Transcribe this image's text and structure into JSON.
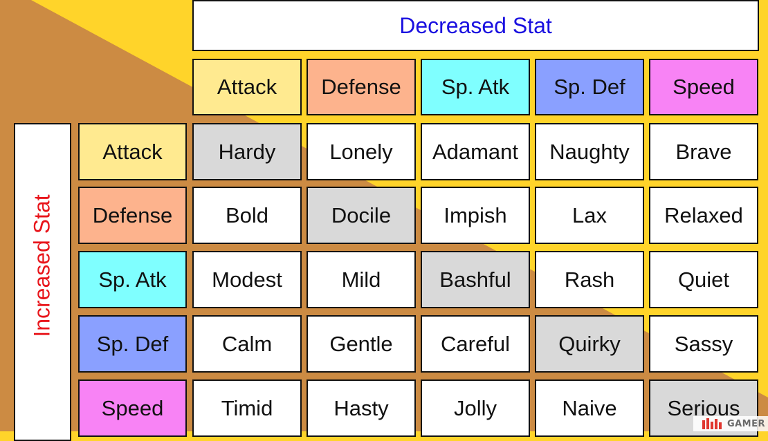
{
  "header": {
    "decreased_label": "Decreased Stat",
    "increased_label": "Increased Stat"
  },
  "stats": [
    {
      "label": "Attack",
      "color": "#ffea90"
    },
    {
      "label": "Defense",
      "color": "#fdb38d"
    },
    {
      "label": "Sp. Atk",
      "color": "#7fffff"
    },
    {
      "label": "Sp. Def",
      "color": "#8aa0ff"
    },
    {
      "label": "Speed",
      "color": "#f883f5"
    }
  ],
  "natures": [
    [
      "Hardy",
      "Lonely",
      "Adamant",
      "Naughty",
      "Brave"
    ],
    [
      "Bold",
      "Docile",
      "Impish",
      "Lax",
      "Relaxed"
    ],
    [
      "Modest",
      "Mild",
      "Bashful",
      "Rash",
      "Quiet"
    ],
    [
      "Calm",
      "Gentle",
      "Careful",
      "Quirky",
      "Sassy"
    ],
    [
      "Timid",
      "Hasty",
      "Jolly",
      "Naive",
      "Serious"
    ]
  ],
  "colors": {
    "background_yellow": "#ffd42a",
    "background_brown": "#cc8b43",
    "neutral_cell": "#d9d9d9",
    "cell": "#ffffff",
    "decreased_text": "#1a10e0",
    "increased_text": "#e8151b"
  },
  "watermark": {
    "text": "GAMER",
    "icon": "gamer-logo-icon"
  }
}
